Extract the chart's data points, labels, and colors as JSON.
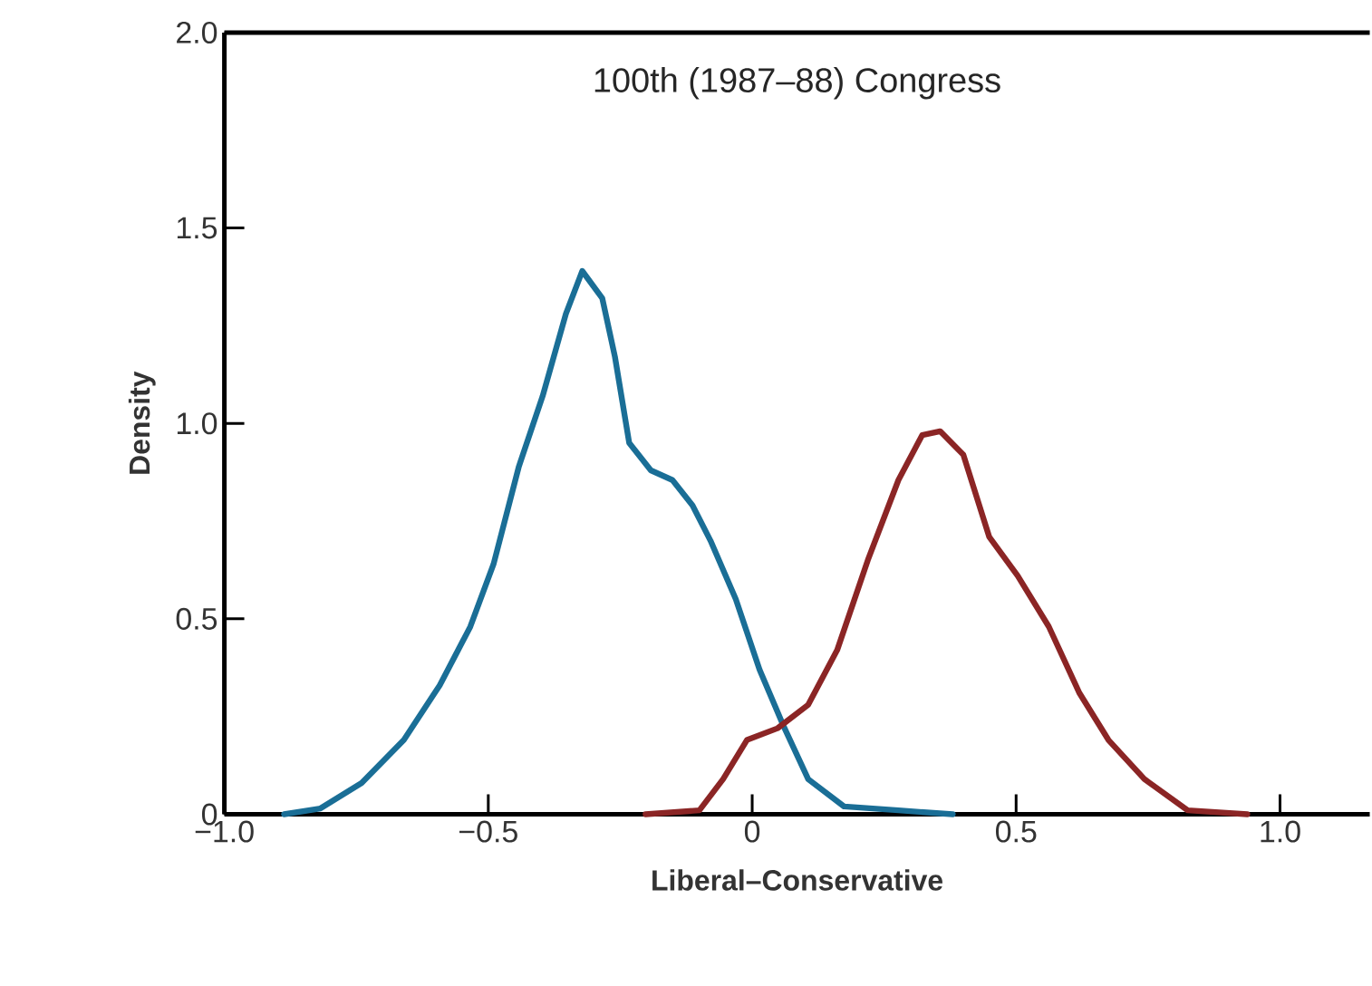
{
  "chart_data": {
    "type": "line",
    "title": "100th (1987–88) Congress",
    "xlabel": "Liberal–Conservative",
    "ylabel": "Density",
    "xlim": [
      -1,
      1.17
    ],
    "ylim": [
      0,
      2
    ],
    "xticks": [
      {
        "value": -1,
        "label": "−1.0"
      },
      {
        "value": -0.5,
        "label": "−0.5"
      },
      0,
      0.5,
      {
        "value": 1,
        "label": "1.0"
      }
    ],
    "yticks": [
      0,
      0.5,
      {
        "value": 1,
        "label": "1.0"
      },
      1.5,
      {
        "value": 2,
        "label": "2.0"
      }
    ],
    "grid": false,
    "marker": "none",
    "line_style": "solid",
    "series": [
      {
        "color": "#1a6e96",
        "x": [
          -0.887,
          -0.818,
          -0.74,
          -0.66,
          -0.592,
          -0.534,
          -0.49,
          -0.442,
          -0.397,
          -0.353,
          -0.322,
          -0.284,
          -0.26,
          -0.233,
          -0.192,
          -0.151,
          -0.113,
          -0.079,
          -0.031,
          0.014,
          0.058,
          0.106,
          0.174,
          0.277,
          0.38
        ],
        "values": [
          0,
          0.015,
          0.08,
          0.19,
          0.33,
          0.48,
          0.64,
          0.89,
          1.07,
          1.28,
          1.39,
          1.32,
          1.17,
          0.95,
          0.88,
          0.855,
          0.79,
          0.7,
          0.55,
          0.37,
          0.23,
          0.09,
          0.02,
          0.01,
          0
        ]
      },
      {
        "color": "#8b2525",
        "x": [
          -0.202,
          -0.1,
          -0.055,
          -0.01,
          0.048,
          0.106,
          0.161,
          0.219,
          0.277,
          0.322,
          0.356,
          0.4,
          0.449,
          0.503,
          0.562,
          0.62,
          0.675,
          0.743,
          0.825,
          0.938
        ],
        "values": [
          0,
          0.01,
          0.09,
          0.19,
          0.22,
          0.28,
          0.42,
          0.65,
          0.855,
          0.97,
          0.98,
          0.92,
          0.71,
          0.61,
          0.48,
          0.31,
          0.19,
          0.09,
          0.01,
          0
        ]
      }
    ]
  }
}
